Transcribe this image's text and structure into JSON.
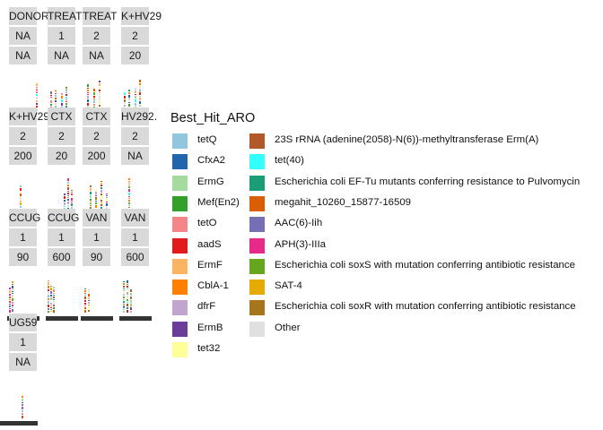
{
  "chart_data": {
    "type": "bar",
    "description_note": "",
    "facets": [
      {
        "strip": [
          "DONOR",
          "NA",
          "NA"
        ]
      },
      {
        "strip": [
          "TREAT",
          "1",
          "NA"
        ]
      },
      {
        "strip": [
          "TREAT",
          "2",
          "NA"
        ]
      },
      {
        "strip": [
          "K+HV29",
          "2",
          "20"
        ]
      },
      {
        "strip": [
          "K+HV29",
          "2",
          "200"
        ]
      },
      {
        "strip": [
          "CTX",
          "2",
          "20"
        ]
      },
      {
        "strip": [
          "CTX",
          "2",
          "200"
        ]
      },
      {
        "strip": [
          "HV292.",
          "2",
          "NA"
        ]
      },
      {
        "strip": [
          "CCUG",
          "1",
          "90"
        ]
      },
      {
        "strip": [
          "CCUG",
          "1",
          "600"
        ]
      },
      {
        "strip": [
          "VAN",
          "1",
          "90"
        ]
      },
      {
        "strip": [
          "VAN",
          "1",
          "600"
        ]
      },
      {
        "strip": [
          "UG59",
          "1",
          "NA"
        ]
      }
    ],
    "legend": {
      "title": "Best_Hit_ARO",
      "position": "right",
      "entries": [
        {
          "label": "tetQ",
          "color": "#92c5de"
        },
        {
          "label": "CfxA2",
          "color": "#2166ac"
        },
        {
          "label": "ErmG",
          "color": "#a6dba0"
        },
        {
          "label": "Mef(En2)",
          "color": "#33a02c"
        },
        {
          "label": "tetO",
          "color": "#f4868a"
        },
        {
          "label": "aadS",
          "color": "#e31a1c"
        },
        {
          "label": "ErmF",
          "color": "#fdb462"
        },
        {
          "label": "CblA-1",
          "color": "#ff7f00"
        },
        {
          "label": "dfrF",
          "color": "#c2a5cf"
        },
        {
          "label": "ErmB",
          "color": "#6a3d9a"
        },
        {
          "label": "tet32",
          "color": "#ffff99"
        },
        {
          "label": "23S rRNA (adenine(2058)-N(6))-methyltransferase Erm(A)",
          "color": "#b15928"
        },
        {
          "label": "tet(40)",
          "color": "#33ffff"
        },
        {
          "label": "Escherichia coli EF-Tu mutants conferring resistance to Pulvomycin",
          "color": "#1b9e77"
        },
        {
          "label": "megahit_10260_15877-16509",
          "color": "#d95f02"
        },
        {
          "label": "AAC(6)-Iih",
          "color": "#7570b3"
        },
        {
          "label": "APH(3)-IIIa",
          "color": "#e7298a"
        },
        {
          "label": "Escherichia coli soxS with mutation conferring antibiotic resistance",
          "color": "#66a61e"
        },
        {
          "label": "SAT-4",
          "color": "#e6ab02"
        },
        {
          "label": "Escherichia coli soxR with mutation conferring antibiotic resistance",
          "color": "#a6761d"
        },
        {
          "label": "Other",
          "color": "#e0e0e0"
        }
      ]
    }
  }
}
